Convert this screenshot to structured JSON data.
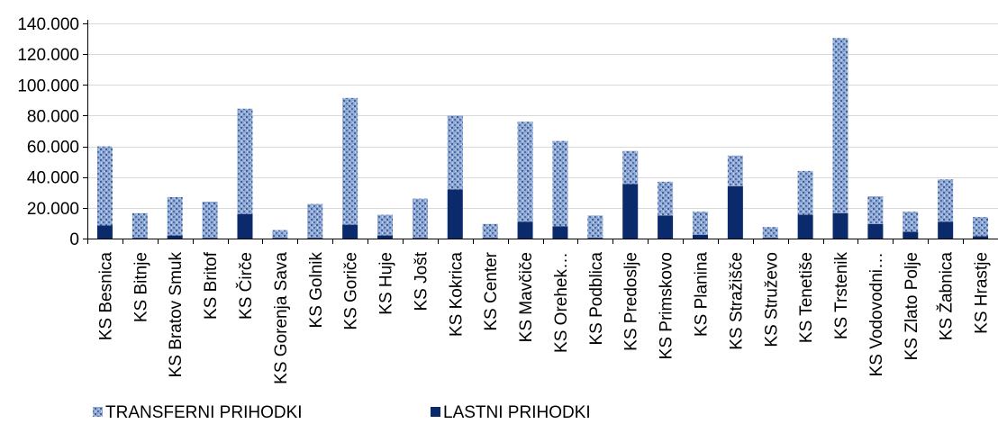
{
  "chart_data": {
    "type": "bar",
    "stacked": true,
    "categories": [
      "KS Besnica",
      "KS Bitnje",
      "KS Bratov Smuk",
      "KS Britof",
      "KS Čirče",
      "KS Gorenja Sava",
      "KS Golnik",
      "KS Goriče",
      "KS Huje",
      "KS Jošt",
      "KS Kokrica",
      "KS Center",
      "KS Mavčiče",
      "KS Orehek…",
      "KS Podblica",
      "KS Predoslje",
      "KS Primskovo",
      "KS Planina",
      "KS Stražišče",
      "KS Struževo",
      "KS Tenetiše",
      "KS Trstenik",
      "KS Vodovodni…",
      "KS Zlato Polje",
      "KS Žabnica",
      "KS Hrastje"
    ],
    "series": [
      {
        "name": "LASTNI PRIHODKI",
        "color": "#0a2a6b",
        "values": [
          8500,
          500,
          2000,
          500,
          16000,
          500,
          500,
          9000,
          2000,
          500,
          32000,
          500,
          11000,
          8000,
          500,
          35500,
          15000,
          2500,
          34000,
          500,
          15500,
          16500,
          9500,
          4500,
          11000,
          1500
        ]
      },
      {
        "name": "TRANSFERNI PRIHODKI",
        "color": "#7f9ccc",
        "values": [
          51500,
          16000,
          25000,
          23500,
          68500,
          5000,
          22000,
          82500,
          13500,
          25500,
          48000,
          9000,
          65000,
          55500,
          14500,
          21500,
          22000,
          15000,
          20000,
          7000,
          28500,
          114000,
          18000,
          13000,
          27500,
          12500
        ]
      }
    ],
    "ylim": [
      0,
      140000
    ],
    "yticks": [
      0,
      20000,
      40000,
      60000,
      80000,
      100000,
      120000,
      140000
    ],
    "ytick_labels": [
      "0",
      "20.000",
      "40.000",
      "60.000",
      "80.000",
      "100.000",
      "120.000",
      "140.000"
    ],
    "title": "",
    "xlabel": "",
    "ylabel": "",
    "grid": true,
    "legend_position": "bottom"
  },
  "legend": {
    "items": [
      {
        "label": "TRANSFERNI PRIHODKI",
        "color": "#7f9ccc",
        "pattern": true
      },
      {
        "label": "LASTNI PRIHODKI",
        "color": "#0a2a6b",
        "pattern": false
      }
    ]
  }
}
